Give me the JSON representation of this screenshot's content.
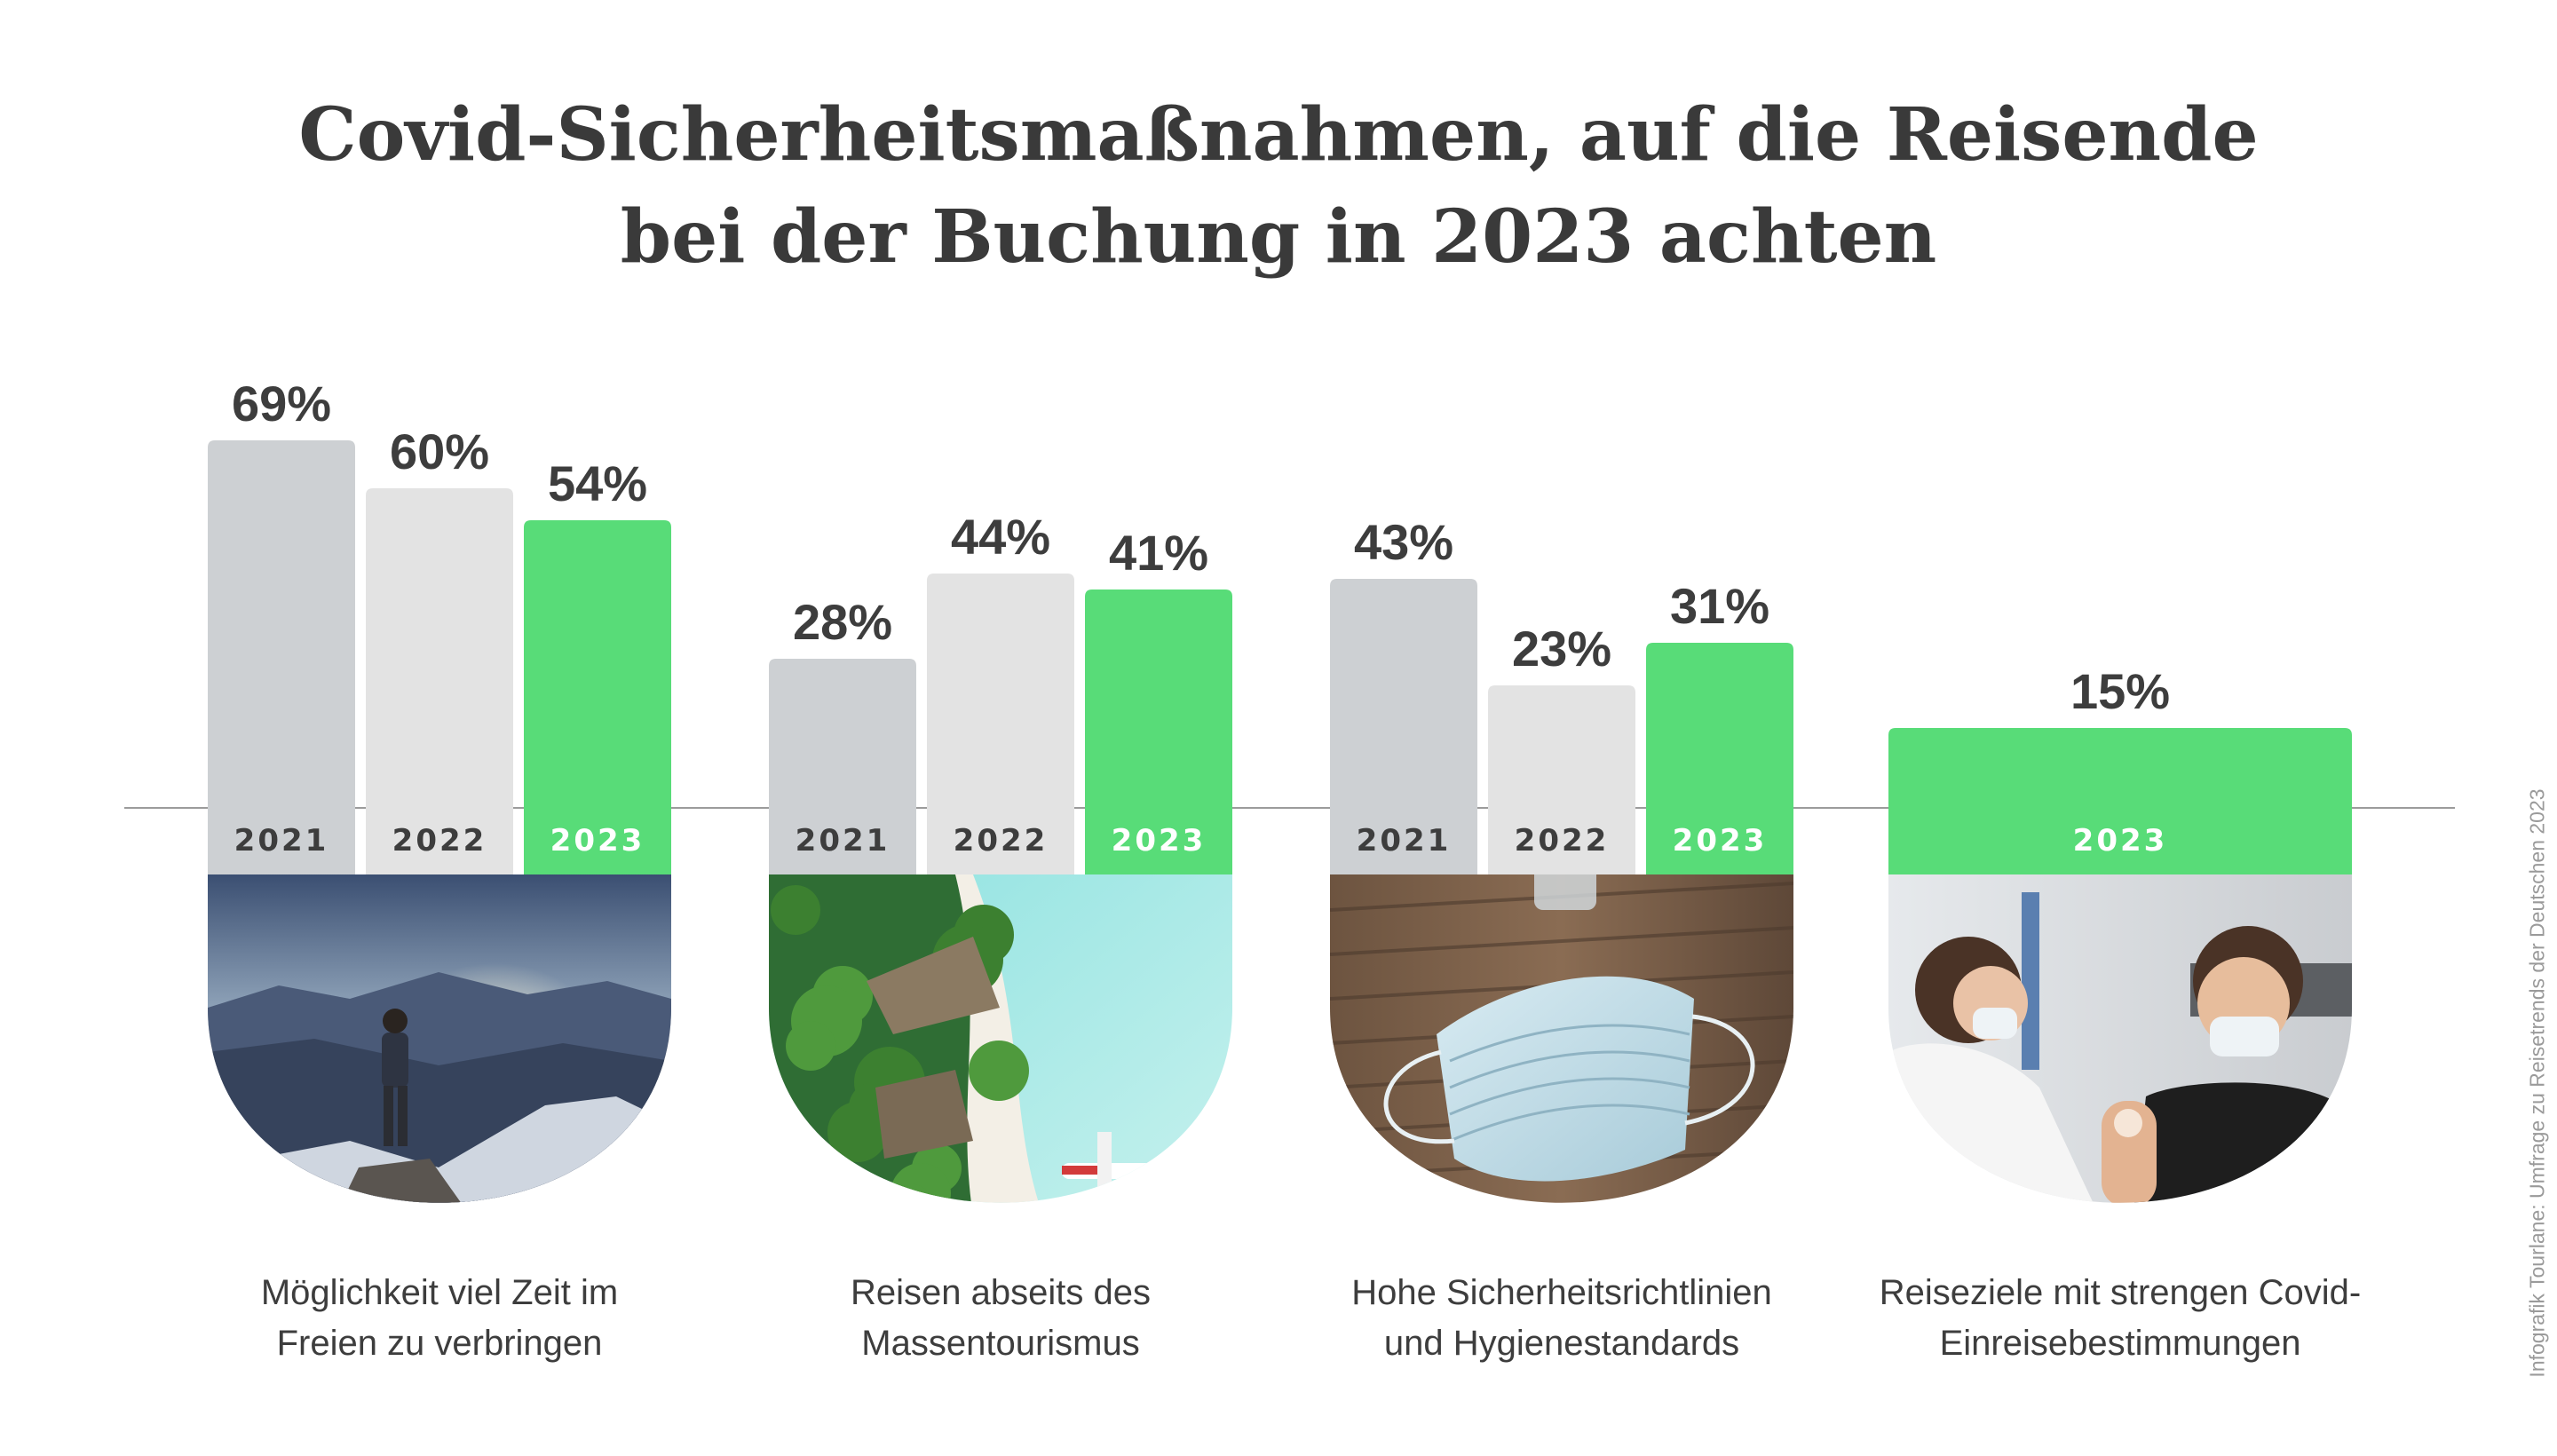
{
  "title": {
    "line1": "Covid-Sicherheitsmaßnahmen, auf die Reisende",
    "line2": "bei der Buchung in 2023 achten"
  },
  "source": "Infografik Tourlane: Umfrage zu Reisetrends der Deutschen 2023",
  "colors": {
    "y2021": "#cdd0d3",
    "y2022": "#e3e3e3",
    "y2023": "#58dc78",
    "label_dark": "#3d3d3d",
    "label_light": "#ffffff",
    "baseline": "#9b9b9b"
  },
  "chart_data": {
    "type": "bar",
    "value_suffix": "%",
    "groups": [
      {
        "caption": [
          "Möglichkeit viel Zeit im",
          "Freien zu verbringen"
        ],
        "image": "hiker-mountain-sunset",
        "bars": [
          {
            "year": "2021",
            "value": 69
          },
          {
            "year": "2022",
            "value": 60
          },
          {
            "year": "2023",
            "value": 54
          }
        ]
      },
      {
        "caption": [
          "Reisen abseits des",
          "Massentourismus"
        ],
        "image": "tropical-beach-palms-seaplane",
        "bars": [
          {
            "year": "2021",
            "value": 28
          },
          {
            "year": "2022",
            "value": 44
          },
          {
            "year": "2023",
            "value": 41
          }
        ]
      },
      {
        "caption": [
          "Hohe Sicherheitsrichtlinien",
          "und Hygienestandards"
        ],
        "image": "face-mask-on-table",
        "bars": [
          {
            "year": "2021",
            "value": 43
          },
          {
            "year": "2022",
            "value": 23
          },
          {
            "year": "2023",
            "value": 31
          }
        ]
      },
      {
        "caption": [
          "Reiseziele mit strengen Covid-",
          "Einreisebestimmungen"
        ],
        "image": "vaccination-arm",
        "bars": [
          {
            "year": "2023",
            "value": 15
          }
        ]
      }
    ]
  }
}
